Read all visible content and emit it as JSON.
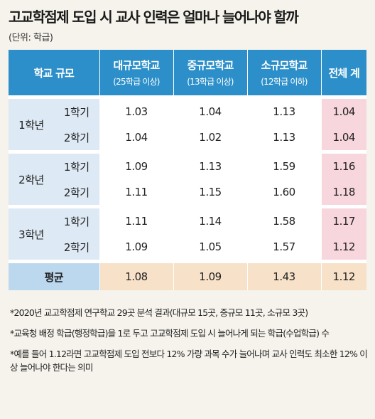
{
  "title": "고교학점제 도입 시 교사 인력은 얼마나 늘어나야 할까",
  "unit": "(단위: 학급)",
  "header": {
    "school_size": "학교 규모",
    "large": "대규모학교",
    "large_sub": "(25학급 이상)",
    "medium": "중규모학교",
    "medium_sub": "(13학급 이상)",
    "small": "소규모학교",
    "small_sub": "(12학급 이하)",
    "total": "전체 계"
  },
  "rows": [
    {
      "grade": "1학년",
      "semesters": [
        {
          "sem": "1학기",
          "large": "1.03",
          "medium": "1.04",
          "small": "1.13",
          "total": "1.04"
        },
        {
          "sem": "2학기",
          "large": "1.04",
          "medium": "1.02",
          "small": "1.13",
          "total": "1.04"
        }
      ]
    },
    {
      "grade": "2학년",
      "semesters": [
        {
          "sem": "1학기",
          "large": "1.09",
          "medium": "1.13",
          "small": "1.59",
          "total": "1.16"
        },
        {
          "sem": "2학기",
          "large": "1.11",
          "medium": "1.15",
          "small": "1.60",
          "total": "1.18"
        }
      ]
    },
    {
      "grade": "3학년",
      "semesters": [
        {
          "sem": "1학기",
          "large": "1.11",
          "medium": "1.14",
          "small": "1.58",
          "total": "1.17"
        },
        {
          "sem": "2학기",
          "large": "1.09",
          "medium": "1.05",
          "small": "1.57",
          "total": "1.12"
        }
      ]
    }
  ],
  "average": {
    "label": "평균",
    "large": "1.08",
    "medium": "1.09",
    "small": "1.43",
    "total": "1.12"
  },
  "notes": [
    "*2020년 교고학점제 연구학교 29곳 분석 결과(대규모 15곳, 중규모 11곳, 소규모 3곳)",
    "*교육청 배정 학급(행정학급)을 1로 두고 고교학점제 도입 시 늘어나게 되는 학급(수업학급) 수",
    "*예를 들어 1.12라면 고교학점제 도입 전보다 12% 가량 과목 수가 늘어나며 교사 인력도 최소한 12% 이상 늘어나야 한다는 의미"
  ]
}
